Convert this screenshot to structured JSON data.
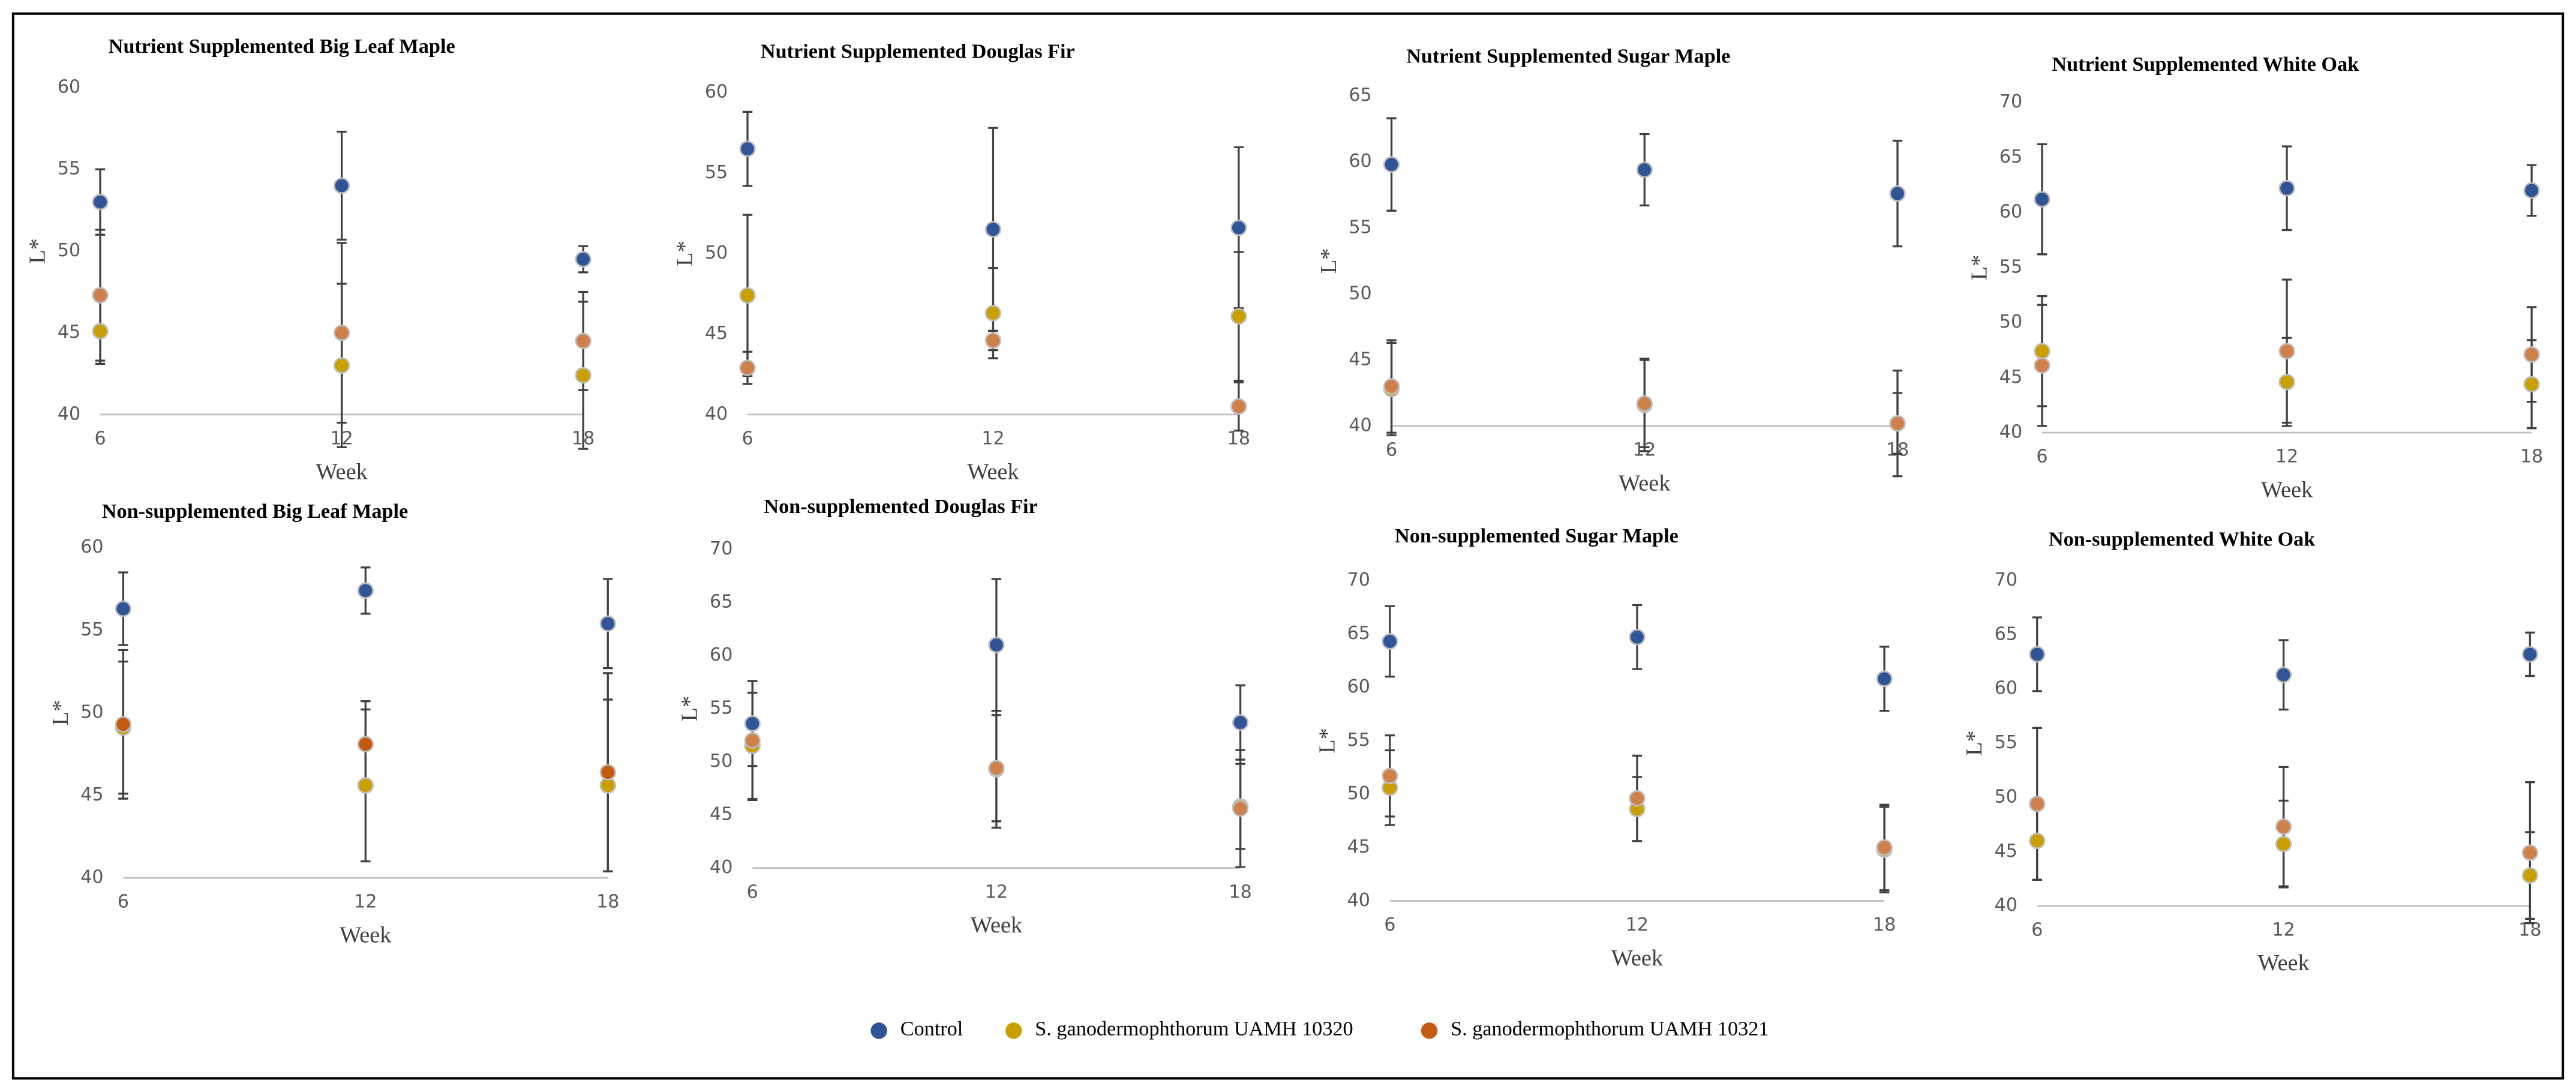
{
  "chart_data": [
    {
      "type": "scatter",
      "title": "Nutrient Supplemented Big Leaf Maple",
      "xlabel": "Week",
      "ylabel": "L*",
      "x": [
        6,
        12,
        18
      ],
      "xlim": [
        6,
        18
      ],
      "xticks": [
        6,
        12,
        18
      ],
      "ylim": [
        40,
        60
      ],
      "yticks": [
        40,
        45,
        50,
        55,
        60
      ],
      "series": [
        {
          "color": "#2f5597",
          "values": [
            53,
            54,
            49.5
          ],
          "errors": [
            2,
            3.3,
            0.8
          ]
        },
        {
          "color": "#c9a000",
          "values": [
            45.1,
            43,
            42.4
          ],
          "errors": [
            2,
            5,
            4.5
          ]
        },
        {
          "color": "#d0804a",
          "values": [
            47.3,
            45,
            44.5
          ],
          "errors": [
            4,
            5.5,
            3
          ]
        }
      ]
    },
    {
      "type": "scatter",
      "title": "Nutrient Supplemented Douglas Fir",
      "xlabel": "Week",
      "ylabel": "L*",
      "x": [
        6,
        12,
        18
      ],
      "xlim": [
        6,
        18
      ],
      "xticks": [
        6,
        12,
        18
      ],
      "ylim": [
        40,
        60
      ],
      "yticks": [
        40,
        45,
        50,
        55,
        60
      ],
      "series": [
        {
          "color": "#2f5597",
          "values": [
            56.5,
            51.5,
            51.6
          ],
          "errors": [
            2.3,
            6.3,
            5
          ]
        },
        {
          "color": "#c9a000",
          "values": [
            47.4,
            46.3,
            46.1
          ],
          "errors": [
            5,
            2.8,
            4
          ]
        },
        {
          "color": "#d0804a",
          "values": [
            42.9,
            44.6,
            40.5
          ],
          "errors": [
            1,
            0.6,
            1.5
          ]
        }
      ]
    },
    {
      "type": "scatter",
      "title": "Nutrient Supplemented Sugar Maple",
      "xlabel": "Week",
      "ylabel": "L*",
      "x": [
        6,
        12,
        18
      ],
      "xlim": [
        6,
        18
      ],
      "xticks": [
        6,
        12,
        18
      ],
      "ylim": [
        40,
        65
      ],
      "yticks": [
        40,
        45,
        50,
        55,
        60,
        65
      ],
      "series": [
        {
          "color": "#2f5597",
          "values": [
            59.8,
            59.4,
            57.6
          ],
          "errors": [
            3.5,
            2.7,
            4
          ]
        },
        {
          "color": "#c9a000",
          "values": [
            42.8,
            41.6,
            40.2
          ],
          "errors": [
            3.5,
            3.5,
            4
          ]
        },
        {
          "color": "#d0804a",
          "values": [
            43,
            41.7,
            40.2
          ],
          "errors": [
            3.5,
            3.3,
            2.3
          ]
        }
      ]
    },
    {
      "type": "scatter",
      "title": "Nutrient Supplemented White Oak",
      "xlabel": "Week",
      "ylabel": "L*",
      "x": [
        6,
        12,
        18
      ],
      "xlim": [
        6,
        18
      ],
      "xticks": [
        6,
        12,
        18
      ],
      "ylim": [
        40,
        70
      ],
      "yticks": [
        40,
        45,
        50,
        55,
        60,
        65,
        70
      ],
      "series": [
        {
          "color": "#2f5597",
          "values": [
            61.2,
            62.2,
            62
          ],
          "errors": [
            5,
            3.8,
            2.3
          ]
        },
        {
          "color": "#c9a000",
          "values": [
            47.4,
            44.6,
            44.4
          ],
          "errors": [
            5,
            4,
            4
          ]
        },
        {
          "color": "#d0804a",
          "values": [
            46.1,
            47.4,
            47.1
          ],
          "errors": [
            5.5,
            6.5,
            4.3
          ]
        }
      ]
    },
    {
      "type": "scatter",
      "title": "Non-supplemented Big Leaf Maple",
      "xlabel": "Week",
      "ylabel": "L*",
      "x": [
        6,
        12,
        18
      ],
      "xlim": [
        6,
        18
      ],
      "xticks": [
        6,
        12,
        18
      ],
      "ylim": [
        40,
        60
      ],
      "yticks": [
        40,
        45,
        50,
        55,
        60
      ],
      "series": [
        {
          "color": "#2f5597",
          "values": [
            56.3,
            57.4,
            55.4
          ],
          "errors": [
            2.2,
            1.4,
            2.7
          ]
        },
        {
          "color": "#c9a000",
          "values": [
            49.1,
            45.6,
            45.6
          ],
          "errors": [
            4,
            4.6,
            5.2
          ]
        },
        {
          "color": "#c55a11",
          "values": [
            49.3,
            48.1,
            46.4
          ],
          "errors": [
            4.5,
            2.6,
            6
          ]
        }
      ]
    },
    {
      "type": "scatter",
      "title": "Non-supplemented Douglas Fir",
      "xlabel": "Week",
      "ylabel": "L*",
      "x": [
        6,
        12,
        18
      ],
      "xlim": [
        6,
        18
      ],
      "xticks": [
        6,
        12,
        18
      ],
      "ylim": [
        40,
        70
      ],
      "yticks": [
        40,
        45,
        50,
        55,
        60,
        65,
        70
      ],
      "series": [
        {
          "color": "#2f5597",
          "values": [
            53.6,
            61,
            53.7
          ],
          "errors": [
            4,
            6.2,
            3.5
          ]
        },
        {
          "color": "#c9a000",
          "values": [
            51.5,
            49.3,
            45.8
          ],
          "errors": [
            5,
            5.5,
            4
          ]
        },
        {
          "color": "#d0804a",
          "values": [
            52,
            49.4,
            45.6
          ],
          "errors": [
            5.6,
            5,
            5.5
          ]
        }
      ]
    },
    {
      "type": "scatter",
      "title": "Non-supplemented Sugar Maple",
      "xlabel": "Week",
      "ylabel": "L*",
      "x": [
        6,
        12,
        18
      ],
      "xlim": [
        6,
        18
      ],
      "xticks": [
        6,
        12,
        18
      ],
      "ylim": [
        40,
        70
      ],
      "yticks": [
        40,
        45,
        50,
        55,
        60,
        65,
        70
      ],
      "series": [
        {
          "color": "#2f5597",
          "values": [
            64.3,
            64.7,
            60.8
          ],
          "errors": [
            3.3,
            3,
            3
          ]
        },
        {
          "color": "#c9a000",
          "values": [
            50.6,
            48.6,
            44.8
          ],
          "errors": [
            3.5,
            3,
            4
          ]
        },
        {
          "color": "#d0804a",
          "values": [
            51.7,
            49.6,
            45
          ],
          "errors": [
            3.8,
            4,
            4
          ]
        }
      ]
    },
    {
      "type": "scatter",
      "title": "Non-supplemented White Oak",
      "xlabel": "Week",
      "ylabel": "L*",
      "x": [
        6,
        12,
        18
      ],
      "xlim": [
        6,
        18
      ],
      "xticks": [
        6,
        12,
        18
      ],
      "ylim": [
        40,
        70
      ],
      "yticks": [
        40,
        45,
        50,
        55,
        60,
        65,
        70
      ],
      "series": [
        {
          "color": "#2f5597",
          "values": [
            63.2,
            61.3,
            63.2
          ],
          "errors": [
            3.4,
            3.2,
            2
          ]
        },
        {
          "color": "#c9a000",
          "values": [
            46,
            45.7,
            42.8
          ],
          "errors": [
            3.6,
            4,
            4
          ]
        },
        {
          "color": "#d0804a",
          "values": [
            49.4,
            47.3,
            44.9
          ],
          "errors": [
            7,
            5.5,
            6.5
          ]
        }
      ]
    }
  ],
  "legend": [
    {
      "name": "Control",
      "color": "#2f5597"
    },
    {
      "name": "S. ganodermophthorum UAMH 10320",
      "color": "#c9a000"
    },
    {
      "name": "S. ganodermophthorum UAMH 10321",
      "color": "#c55a11"
    }
  ]
}
